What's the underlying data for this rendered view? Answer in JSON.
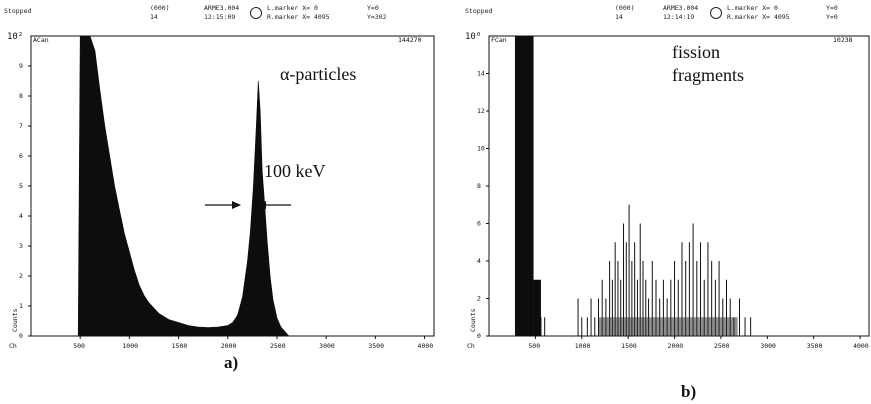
{
  "panels": [
    {
      "header": {
        "status": "Stopped",
        "group_top": "(000)",
        "group_bottom": "14",
        "file": "ARME3.004",
        "time": "12:15:09",
        "lmarker": "L.marker X= 0",
        "rmarker": "R.marker X= 4095",
        "y_top": "Y=0",
        "y_bottom": "Y=302"
      },
      "caption": "a)",
      "annotation_main": "α-particles",
      "annotation_width": "100 keV"
    },
    {
      "header": {
        "status": "Stopped",
        "group_top": "(000)",
        "group_bottom": "14",
        "file": "ARME3.004",
        "time": "12:14:19",
        "lmarker": "L.marker X= 0",
        "rmarker": "R.marker X= 4095",
        "y_top": "Y=0",
        "y_bottom": "Y=0"
      },
      "caption": "b)",
      "annotation_line1": "fission",
      "annotation_line2": "fragments"
    }
  ],
  "chart_data": [
    {
      "type": "bar",
      "ymax_label": "10²",
      "yaxis_id": "ACan",
      "counts_total": "144270",
      "xlabel": "Ch",
      "ylabel": "Counts",
      "xlim": [
        0,
        4096
      ],
      "ylim": [
        0,
        10
      ],
      "x_ticks": [
        "500",
        "1000",
        "1500",
        "2000",
        "2500",
        "3000",
        "3500",
        "4000"
      ],
      "y_ticks": [
        "0",
        "1",
        "2",
        "3",
        "4",
        "5",
        "6",
        "7",
        "8",
        "9"
      ],
      "profile": {
        "x": [
          480,
          500,
          560,
          600,
          650,
          700,
          750,
          800,
          850,
          900,
          950,
          1000,
          1050,
          1100,
          1150,
          1200,
          1300,
          1400,
          1500,
          1600,
          1700,
          1800,
          1900,
          2000,
          2050,
          2100,
          2150,
          2200,
          2230,
          2260,
          2290,
          2310,
          2330,
          2350,
          2370,
          2400,
          2430,
          2460,
          2500,
          2540,
          2580,
          2620
        ],
        "y": [
          0,
          10,
          10,
          10,
          9.5,
          8.2,
          7.0,
          6.0,
          5.0,
          4.2,
          3.4,
          2.8,
          2.2,
          1.7,
          1.35,
          1.1,
          0.75,
          0.55,
          0.45,
          0.35,
          0.3,
          0.28,
          0.3,
          0.35,
          0.45,
          0.7,
          1.3,
          2.5,
          3.5,
          5.0,
          7.0,
          8.5,
          7.5,
          5.5,
          4.6,
          3.2,
          2.0,
          1.2,
          0.6,
          0.3,
          0.15,
          0
        ]
      }
    },
    {
      "type": "bar",
      "ymax_label": "10⁰",
      "yaxis_id": "FCan",
      "counts_total": "10238",
      "xlabel": "Ch",
      "ylabel": "Counts",
      "xlim": [
        0,
        4096
      ],
      "ylim": [
        0,
        16
      ],
      "x_ticks": [
        "500",
        "1000",
        "1500",
        "2000",
        "2500",
        "3000",
        "3500",
        "4000"
      ],
      "y_ticks": [
        "0",
        "2",
        "4",
        "6",
        "8",
        "10",
        "12",
        "14"
      ],
      "fill_block": {
        "x0": 280,
        "x1": 480,
        "y": 16
      },
      "tail": {
        "x": [
          480,
          560
        ],
        "y": [
          3,
          1
        ]
      },
      "spikes": {
        "x": [
          560,
          600,
          960,
          1000,
          1060,
          1100,
          1140,
          1180,
          1220,
          1260,
          1300,
          1330,
          1360,
          1390,
          1420,
          1450,
          1480,
          1510,
          1540,
          1570,
          1600,
          1630,
          1660,
          1690,
          1720,
          1760,
          1800,
          1840,
          1880,
          1920,
          1960,
          2000,
          2040,
          2080,
          2120,
          2160,
          2200,
          2240,
          2280,
          2320,
          2360,
          2400,
          2440,
          2480,
          2520,
          2560,
          2600,
          2640,
          2700,
          2760,
          2820
        ],
        "y": [
          1,
          1,
          2,
          1,
          1,
          2,
          1,
          2,
          3,
          2,
          4,
          3,
          5,
          4,
          3,
          6,
          5,
          7,
          4,
          5,
          3,
          6,
          4,
          3,
          2,
          4,
          3,
          2,
          3,
          2,
          3,
          4,
          3,
          5,
          4,
          5,
          6,
          4,
          5,
          3,
          5,
          4,
          3,
          4,
          2,
          3,
          2,
          1,
          2,
          1,
          1
        ]
      }
    }
  ]
}
